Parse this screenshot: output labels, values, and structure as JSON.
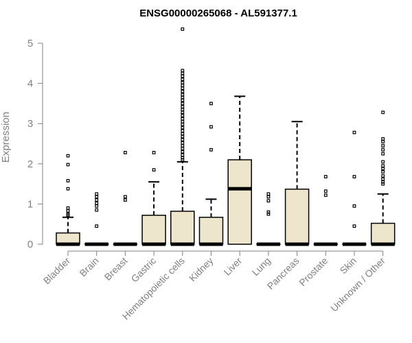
{
  "chart_data": {
    "type": "box",
    "title": "ENSG00000265068 - AL591377.1",
    "xlabel": "",
    "ylabel": "Expression",
    "ylim": [
      0,
      5
    ],
    "yticks": [
      0,
      1,
      2,
      3,
      4,
      5
    ],
    "grid": false,
    "legend": "none",
    "colors": {
      "box_fill": "#ede6cc",
      "stroke": "#000000",
      "axis": "#808080"
    },
    "categories": [
      "Bladder",
      "Brain",
      "Breast",
      "Gastric",
      "Hematopoietic cells",
      "Kidney",
      "Liver",
      "Lung",
      "Pancreas",
      "Prostate",
      "Skin",
      "Unknown / Other"
    ],
    "boxes": [
      {
        "category": "Bladder",
        "q1": 0,
        "median": 0,
        "q3": 0.28,
        "whisker_low": 0,
        "whisker_high": 0.67,
        "outliers": [
          2.2,
          1.98,
          1.58,
          1.38,
          0.9,
          0.83,
          0.75,
          0.72
        ]
      },
      {
        "category": "Brain",
        "q1": 0,
        "median": 0,
        "q3": 0,
        "whisker_low": 0,
        "whisker_high": 0,
        "outliers": [
          1.25,
          1.18,
          1.1,
          1.02,
          0.95,
          0.85,
          0.45
        ]
      },
      {
        "category": "Breast",
        "q1": 0,
        "median": 0,
        "q3": 0,
        "whisker_low": 0,
        "whisker_high": 0,
        "outliers": [
          2.28,
          1.18,
          1.1
        ]
      },
      {
        "category": "Gastric",
        "q1": 0,
        "median": 0,
        "q3": 0.72,
        "whisker_low": 0,
        "whisker_high": 1.55,
        "outliers": [
          2.28,
          1.85
        ]
      },
      {
        "category": "Hematopoietic cells",
        "q1": 0,
        "median": 0,
        "q3": 0.82,
        "whisker_low": 0,
        "whisker_high": 2.05,
        "outliers": [
          5.35,
          4.32,
          4.25,
          4.18,
          4.1,
          4.02,
          3.95,
          3.88,
          3.8,
          3.72,
          3.65,
          3.58,
          3.5,
          3.42,
          3.35,
          3.28,
          3.2,
          3.12,
          3.05,
          2.98,
          2.9,
          2.82,
          2.75,
          2.68,
          2.6,
          2.52,
          2.45,
          2.38,
          2.3,
          2.22,
          2.15,
          2.1
        ]
      },
      {
        "category": "Kidney",
        "q1": 0,
        "median": 0,
        "q3": 0.67,
        "whisker_low": 0,
        "whisker_high": 1.12,
        "outliers": [
          3.5,
          2.92,
          2.35
        ]
      },
      {
        "category": "Liver",
        "q1": 0,
        "median": 1.38,
        "q3": 2.1,
        "whisker_low": 0,
        "whisker_high": 3.68,
        "outliers": []
      },
      {
        "category": "Lung",
        "q1": 0,
        "median": 0,
        "q3": 0,
        "whisker_low": 0,
        "whisker_high": 0,
        "outliers": [
          1.25,
          1.18,
          1.08,
          0.8,
          0.75
        ]
      },
      {
        "category": "Pancreas",
        "q1": 0,
        "median": 0,
        "q3": 1.37,
        "whisker_low": 0,
        "whisker_high": 3.05,
        "outliers": []
      },
      {
        "category": "Prostate",
        "q1": 0,
        "median": 0,
        "q3": 0,
        "whisker_low": 0,
        "whisker_high": 0,
        "outliers": [
          1.68,
          1.32,
          1.22
        ]
      },
      {
        "category": "Skin",
        "q1": 0,
        "median": 0,
        "q3": 0,
        "whisker_low": 0,
        "whisker_high": 0,
        "outliers": [
          2.78,
          1.68,
          0.95,
          0.45
        ]
      },
      {
        "category": "Unknown / Other",
        "q1": 0,
        "median": 0,
        "q3": 0.52,
        "whisker_low": 0,
        "whisker_high": 1.25,
        "outliers": [
          3.28,
          2.62,
          2.55,
          2.45,
          2.35,
          2.25,
          2.05,
          1.95,
          1.88,
          1.8,
          1.7,
          1.62,
          1.55,
          1.5
        ]
      }
    ]
  }
}
